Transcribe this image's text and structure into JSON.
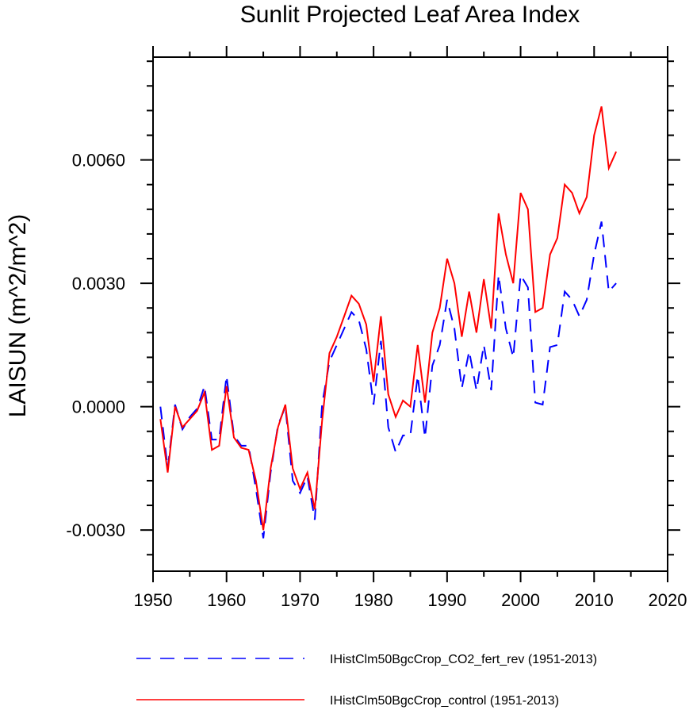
{
  "chart_data": {
    "type": "line",
    "title": "Sunlit Projected Leaf Area Index",
    "ylabel": "LAISUN  (m^2/m^2)",
    "xlabel": "",
    "xlim": [
      1950,
      2020
    ],
    "ylim": [
      -0.004,
      0.0085
    ],
    "xticks": [
      1950,
      1960,
      1970,
      1980,
      1990,
      2000,
      2010,
      2020
    ],
    "xtick_labels": [
      "1950",
      "1960",
      "1970",
      "1980",
      "1990",
      "2000",
      "2010",
      "2020"
    ],
    "yticks": [
      -0.003,
      0.0,
      0.003,
      0.006
    ],
    "ytick_labels": [
      "-0.0030",
      "0.0000",
      "0.0030",
      "0.0060"
    ],
    "x": [
      1951,
      1952,
      1953,
      1954,
      1955,
      1956,
      1957,
      1958,
      1959,
      1960,
      1961,
      1962,
      1963,
      1964,
      1965,
      1966,
      1967,
      1968,
      1969,
      1970,
      1971,
      1972,
      1973,
      1974,
      1975,
      1976,
      1977,
      1978,
      1979,
      1980,
      1981,
      1982,
      1983,
      1984,
      1985,
      1986,
      1987,
      1988,
      1989,
      1990,
      1991,
      1992,
      1993,
      1994,
      1995,
      1996,
      1997,
      1998,
      1999,
      2000,
      2001,
      2002,
      2003,
      2004,
      2005,
      2006,
      2007,
      2008,
      2009,
      2010,
      2011,
      2012,
      2013
    ],
    "series": [
      {
        "name": "IHistClm50BgcCrop_CO2_fert_rev (1951-2013)",
        "color": "#0000ff",
        "dash": "dashed",
        "values": [
          0.0,
          -0.0015,
          5e-05,
          -0.00055,
          -0.00025,
          -5e-05,
          0.0005,
          -0.0008,
          -0.0008,
          0.00075,
          -0.0007,
          -0.00095,
          -0.00095,
          -0.002,
          -0.0032,
          -0.0016,
          -0.00045,
          0.0,
          -0.0018,
          -0.0021,
          -0.0017,
          -0.00275,
          5e-05,
          0.0011,
          0.0015,
          0.0019,
          0.0023,
          0.0021,
          0.0014,
          5e-05,
          0.0016,
          -0.0005,
          -0.0011,
          -0.0007,
          -0.0007,
          0.00075,
          -0.00075,
          0.001,
          0.0015,
          0.0026,
          0.0019,
          0.00045,
          0.00135,
          0.0004,
          0.0015,
          0.0004,
          0.0032,
          0.0019,
          0.0012,
          0.0032,
          0.0029,
          0.0001,
          5e-05,
          0.00145,
          0.0015,
          0.0028,
          0.0026,
          0.0022,
          0.0026,
          0.0037,
          0.0045,
          0.0028,
          0.003
        ]
      },
      {
        "name": "IHistClm50BgcCrop_control (1951-2013)",
        "color": "#ff0000",
        "dash": "solid",
        "values": [
          -0.0003,
          -0.0016,
          0.0,
          -0.0005,
          -0.0003,
          -0.0001,
          0.00035,
          -0.00105,
          -0.00095,
          0.0005,
          -0.00075,
          -0.001,
          -0.00105,
          -0.0018,
          -0.003,
          -0.0015,
          -0.0005,
          5e-05,
          -0.0015,
          -0.002,
          -0.0016,
          -0.0025,
          -0.00035,
          0.0013,
          0.0017,
          0.0022,
          0.0027,
          0.0025,
          0.002,
          0.0006,
          0.0022,
          0.0003,
          -0.00025,
          0.00015,
          0.0,
          0.0015,
          0.0001,
          0.0018,
          0.0024,
          0.0036,
          0.003,
          0.0017,
          0.0028,
          0.0018,
          0.0031,
          0.0019,
          0.0047,
          0.0037,
          0.003,
          0.0052,
          0.0048,
          0.0023,
          0.0024,
          0.0037,
          0.0041,
          0.0054,
          0.0052,
          0.0047,
          0.0051,
          0.0066,
          0.0073,
          0.0058,
          0.0062
        ]
      }
    ],
    "legend_position": "bottom"
  }
}
